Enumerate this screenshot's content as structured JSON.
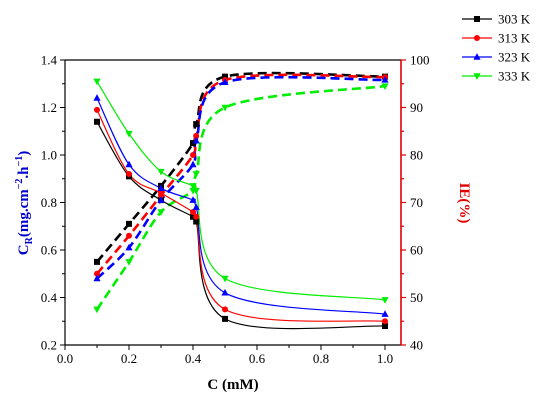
{
  "chart_data": {
    "type": "line",
    "xlabel": "C (mM)",
    "ylabel_left_main": "C",
    "ylabel_left_sub": "R",
    "ylabel_left_rest": "(mg.cm",
    "ylabel_left_sup1": "−2",
    "ylabel_left_mid": ".h",
    "ylabel_left_sup2": "−1",
    "ylabel_left_end": ")",
    "ylabel_right": "IE(%)",
    "xlim": [
      0.0,
      1.05
    ],
    "ylim_left": [
      0.2,
      1.4
    ],
    "ylim_right": [
      40,
      100
    ],
    "x_ticks": [
      "0.0",
      "0.2",
      "0.4",
      "0.6",
      "0.8",
      "1.0"
    ],
    "y_left_ticks": [
      "0.2",
      "0.4",
      "0.6",
      "0.8",
      "1.0",
      "1.2",
      "1.4"
    ],
    "y_right_ticks": [
      "40",
      "50",
      "60",
      "70",
      "80",
      "90",
      "100"
    ],
    "right_axis_color": "#e00000",
    "left_axis_color": "#0000cc",
    "legend_position": "top-right",
    "x": [
      0.1,
      0.2,
      0.3,
      0.4,
      0.41,
      0.5,
      1.0
    ],
    "series_cr": [
      {
        "name": "303 K",
        "color": "#000000",
        "marker": "square",
        "values": [
          1.14,
          0.91,
          0.81,
          0.74,
          0.72,
          0.31,
          0.28
        ]
      },
      {
        "name": "313 K",
        "color": "#ff0000",
        "marker": "circle",
        "values": [
          1.19,
          0.92,
          0.84,
          0.76,
          0.74,
          0.35,
          0.3
        ]
      },
      {
        "name": "323 K",
        "color": "#0000ff",
        "marker": "triangle-up",
        "values": [
          1.24,
          0.96,
          0.86,
          0.81,
          0.78,
          0.42,
          0.33
        ]
      },
      {
        "name": "333 K",
        "color": "#00ee00",
        "marker": "triangle-down",
        "values": [
          1.31,
          1.09,
          0.93,
          0.87,
          0.85,
          0.48,
          0.39
        ]
      }
    ],
    "series_ie": [
      {
        "name": "303 K",
        "color": "#000000",
        "values": [
          57.5,
          65.5,
          73.5,
          82.5,
          86.5,
          96.5,
          96.5
        ]
      },
      {
        "name": "313 K",
        "color": "#ff0000",
        "values": [
          55.0,
          63.0,
          71.5,
          80.0,
          84.0,
          95.8,
          96.4
        ]
      },
      {
        "name": "323 K",
        "color": "#0000ff",
        "values": [
          54.0,
          60.5,
          70.5,
          78.0,
          83.0,
          95.3,
          95.8
        ]
      },
      {
        "name": "333 K",
        "color": "#00ee00",
        "values": [
          47.5,
          57.5,
          68.0,
          72.5,
          76.0,
          90.0,
          94.5
        ]
      }
    ]
  }
}
